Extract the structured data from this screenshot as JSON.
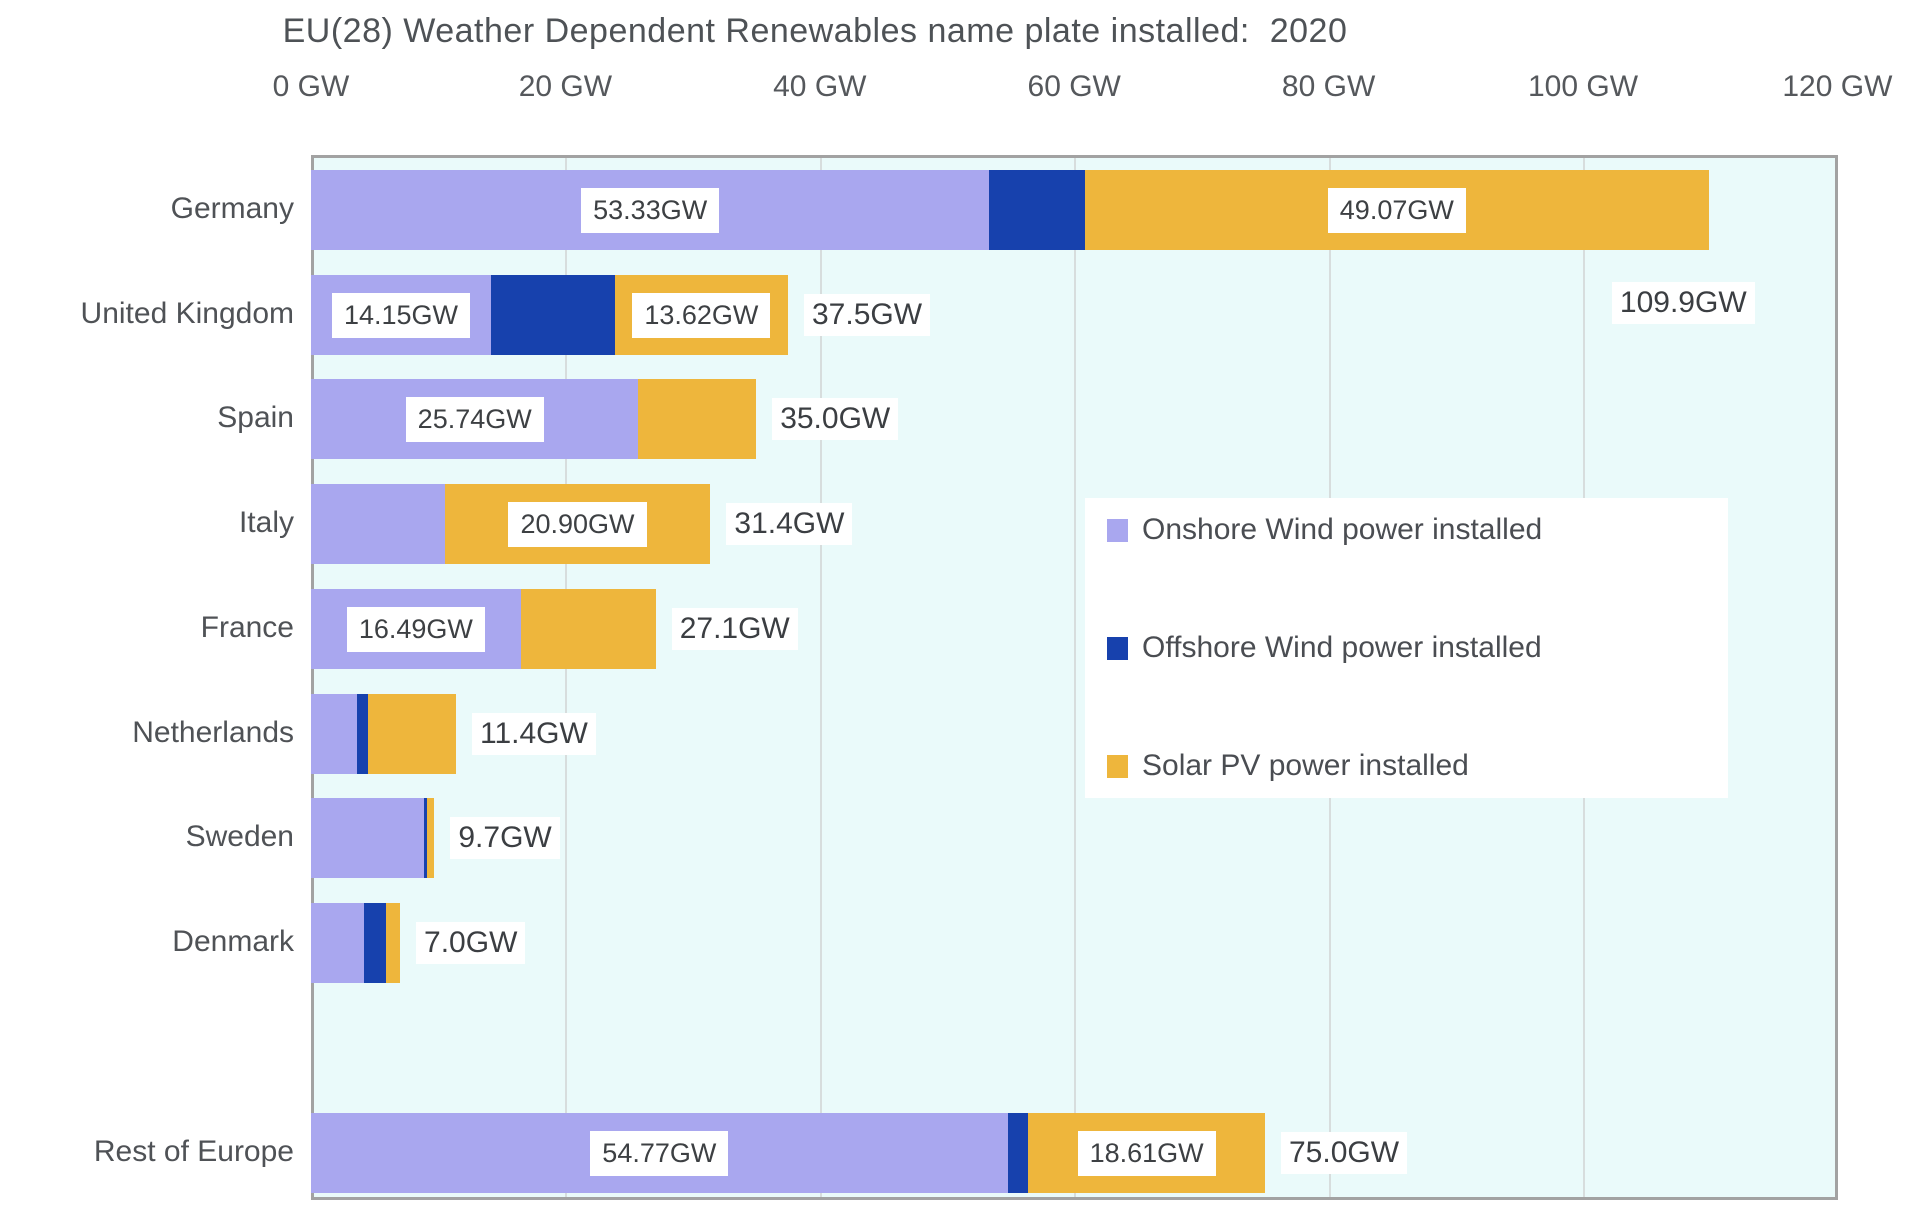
{
  "chart_data": {
    "type": "bar",
    "orientation": "horizontal",
    "title": "EU(28) Weather Dependent Renewables name plate installed:  2020",
    "categories": [
      "Germany",
      "United Kingdom",
      "Spain",
      "Italy",
      "France",
      "Netherlands",
      "Sweden",
      "Denmark",
      "Rest of Europe"
    ],
    "series": [
      {
        "name": "Onshore Wind power installed",
        "color": "#a9a7ef",
        "values": [
          53.33,
          14.15,
          25.74,
          10.5,
          16.49,
          3.6,
          8.9,
          4.2,
          54.77
        ],
        "labels": [
          "53.33GW",
          "14.15GW",
          "25.74GW",
          null,
          "16.49GW",
          null,
          null,
          null,
          "54.77GW"
        ]
      },
      {
        "name": "Offshore Wind power installed",
        "color": "#1741ad",
        "values": [
          7.5,
          9.73,
          0,
          0,
          0,
          0.9,
          0.2,
          1.7,
          1.62
        ],
        "labels": [
          null,
          null,
          null,
          null,
          null,
          null,
          null,
          null,
          null
        ]
      },
      {
        "name": "Solar PV power installed",
        "color": "#eeb63c",
        "values": [
          49.07,
          13.62,
          9.26,
          20.9,
          10.61,
          6.9,
          0.6,
          1.1,
          18.61
        ],
        "labels": [
          "49.07GW",
          "13.62GW",
          null,
          "20.90GW",
          null,
          null,
          null,
          null,
          "18.61GW"
        ]
      }
    ],
    "totals": [
      109.9,
      37.5,
      35.0,
      31.4,
      27.1,
      11.4,
      9.7,
      7.0,
      75.0
    ],
    "total_labels": [
      "109.9GW",
      "37.5GW",
      "35.0GW",
      "31.4GW",
      "27.1GW",
      "11.4GW",
      "9.7GW",
      "7.0GW",
      "75.0GW"
    ],
    "xlim": [
      0,
      120
    ],
    "x_ticks": [
      "0 GW",
      "20 GW",
      "40 GW",
      "60 GW",
      "80 GW",
      "100 GW",
      "120 GW"
    ],
    "grid": true,
    "legend_position": "middle-right"
  },
  "legend": {
    "items": [
      "Onshore Wind power installed",
      "Offshore Wind power installed",
      "Solar PV power installed"
    ]
  },
  "colors": {
    "plot_background": "#eafafa",
    "gridline": "#d7dddd",
    "plot_border": "#a2a2a2",
    "text": "#4f5256",
    "label_box_background": "#ffffff"
  }
}
